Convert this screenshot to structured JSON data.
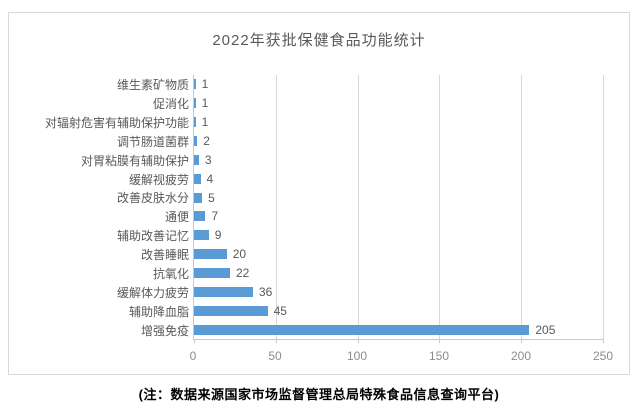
{
  "title": "2022年获批保健食品功能统计",
  "note": "(注：数据来源国家市场监督管理总局特殊食品信息查询平台)",
  "chart_data": {
    "type": "bar",
    "orientation": "horizontal",
    "title": "2022年获批保健食品功能统计",
    "categories": [
      "维生素矿物质",
      "促消化",
      "对辐射危害有辅助保护功能",
      "调节肠道菌群",
      "对胃粘膜有辅助保护",
      "缓解视疲劳",
      "改善皮肤水分",
      "通便",
      "辅助改善记忆",
      "改善睡眠",
      "抗氧化",
      "缓解体力疲劳",
      "辅助降血脂",
      "增强免疫"
    ],
    "values": [
      1,
      1,
      1,
      2,
      3,
      4,
      5,
      7,
      9,
      20,
      22,
      36,
      45,
      205
    ],
    "xticks": [
      0,
      50,
      100,
      150,
      200,
      250
    ],
    "xlim": [
      0,
      250
    ],
    "xlabel": "",
    "ylabel": "",
    "grid": true,
    "legend": false,
    "data_labels": true
  },
  "colors": {
    "bar": "#5b9bd5",
    "gridline": "#d9d9d9",
    "axis_line": "#c9c9c9",
    "frame_border": "#d9d9d9",
    "title_text": "#595959",
    "label_text": "#595959",
    "tick_text": "#8c8c8c",
    "note_text": "#000000"
  }
}
